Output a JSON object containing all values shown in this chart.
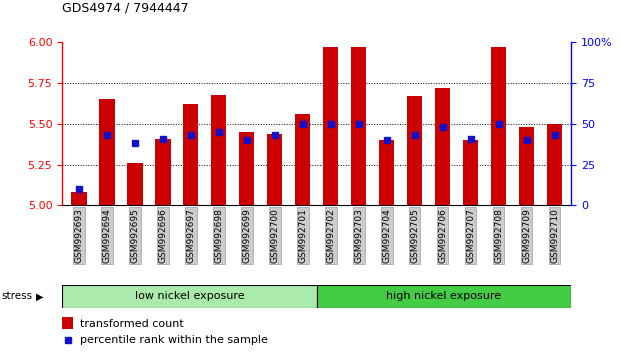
{
  "title": "GDS4974 / 7944447",
  "samples": [
    "GSM992693",
    "GSM992694",
    "GSM992695",
    "GSM992696",
    "GSM992697",
    "GSM992698",
    "GSM992699",
    "GSM992700",
    "GSM992701",
    "GSM992702",
    "GSM992703",
    "GSM992704",
    "GSM992705",
    "GSM992706",
    "GSM992707",
    "GSM992708",
    "GSM992709",
    "GSM992710"
  ],
  "red_values": [
    5.08,
    5.65,
    5.26,
    5.41,
    5.62,
    5.68,
    5.45,
    5.44,
    5.56,
    5.97,
    5.97,
    5.4,
    5.67,
    5.72,
    5.4,
    5.97,
    5.48,
    5.5
  ],
  "blue_percentiles": [
    10,
    43,
    38,
    41,
    43,
    45,
    40,
    43,
    50,
    50,
    50,
    40,
    43,
    48,
    41,
    50,
    40,
    43
  ],
  "ymin": 5.0,
  "ymax": 6.0,
  "yticks_left": [
    5.0,
    5.25,
    5.5,
    5.75,
    6.0
  ],
  "yticks_right": [
    0,
    25,
    50,
    75,
    100
  ],
  "bar_color": "#cc0000",
  "blue_color": "#1111cc",
  "group1_label": "low nickel exposure",
  "group2_label": "high nickel exposure",
  "group1_count": 9,
  "group1_color": "#aaeaaa",
  "group2_color": "#44cc44",
  "stress_label": "stress",
  "legend1": "transformed count",
  "legend2": "percentile rank within the sample",
  "bar_width": 0.55,
  "base": 5.0,
  "figsize": [
    6.21,
    3.54
  ],
  "dpi": 100
}
